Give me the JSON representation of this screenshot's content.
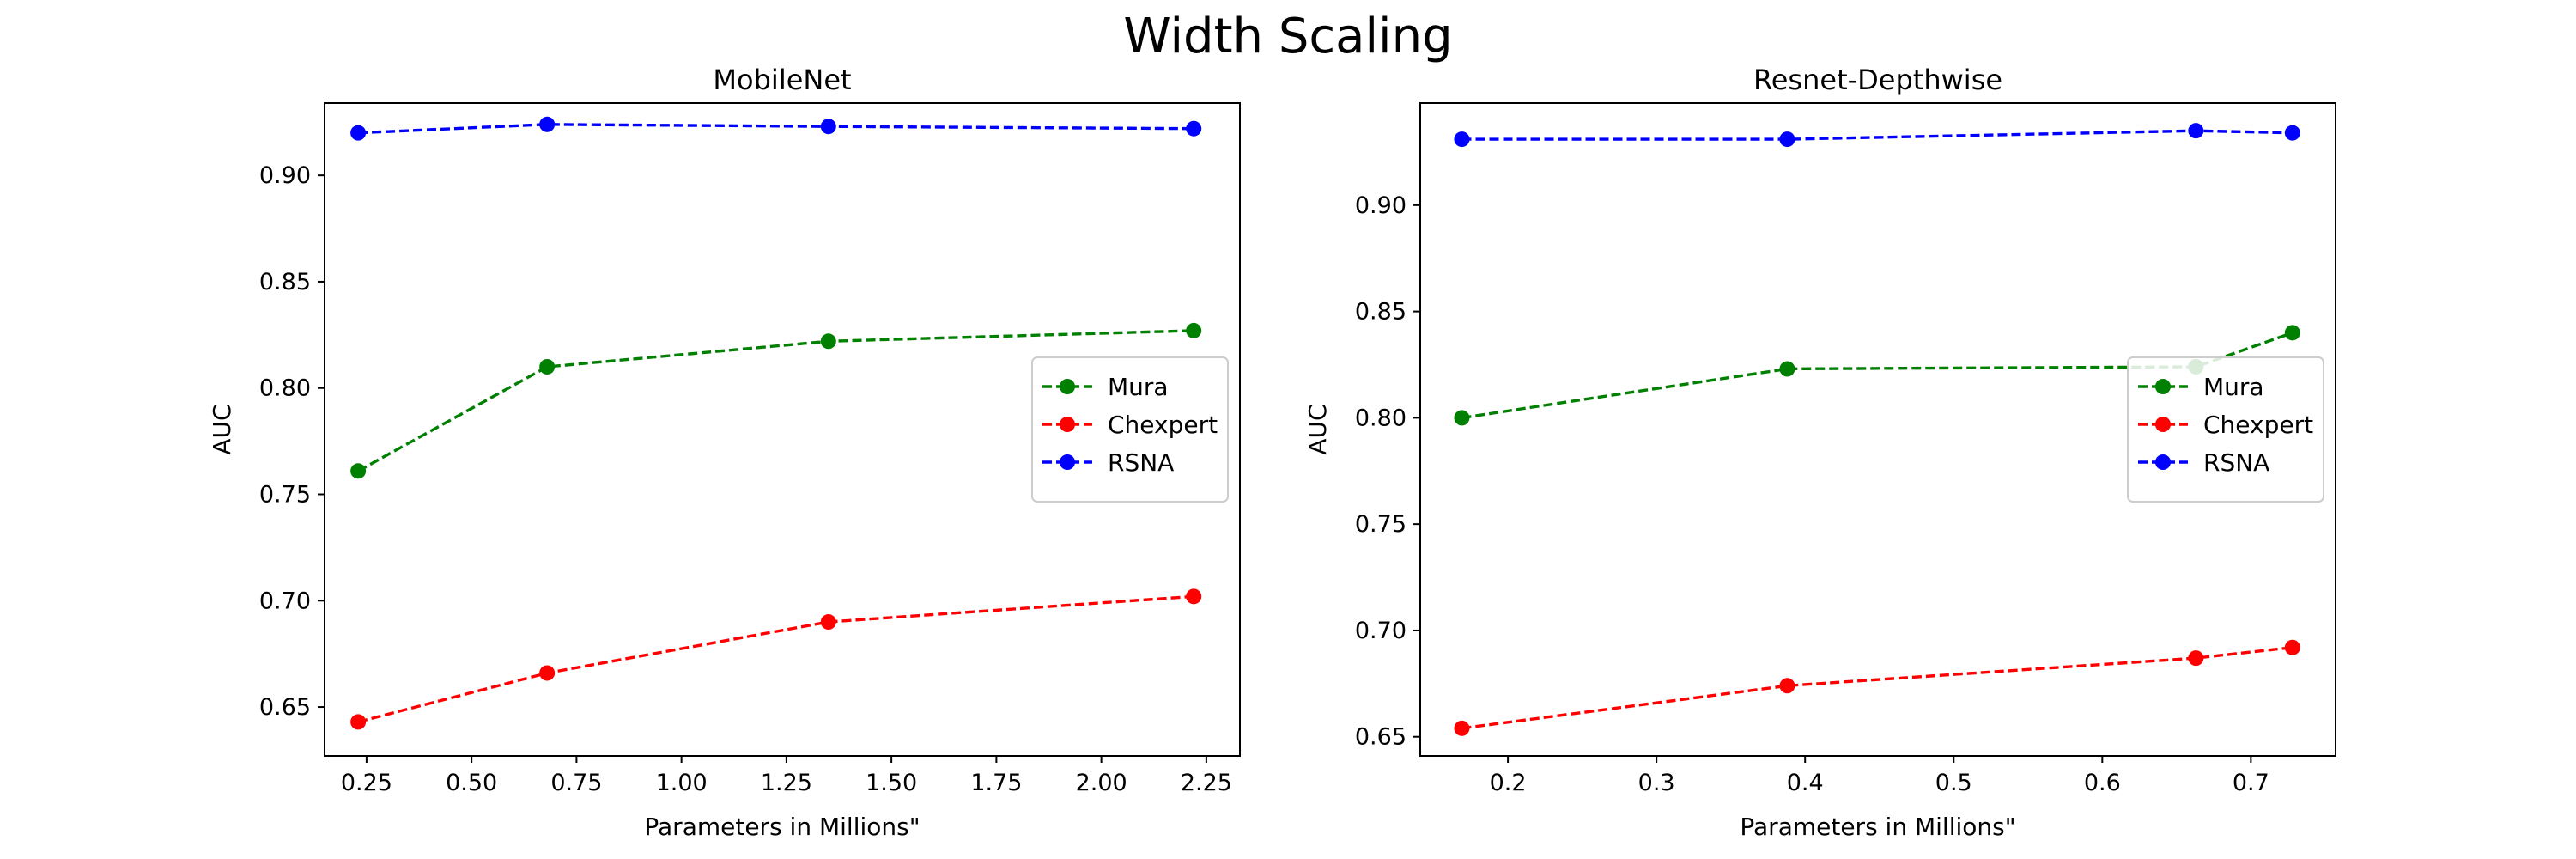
{
  "suptitle": "Width Scaling",
  "chart_data": [
    {
      "type": "line",
      "title": "MobileNet",
      "xlabel": "Parameters in Millions\"",
      "ylabel": "AUC",
      "xlim": [
        0.15,
        2.33
      ],
      "ylim": [
        0.627,
        0.934
      ],
      "xticks": [
        0.25,
        0.5,
        0.75,
        1.0,
        1.25,
        1.5,
        1.75,
        2.0,
        2.25
      ],
      "xtick_labels": [
        "0.25",
        "0.50",
        "0.75",
        "1.00",
        "1.25",
        "1.50",
        "1.75",
        "2.00",
        "2.25"
      ],
      "yticks": [
        0.65,
        0.7,
        0.75,
        0.8,
        0.85,
        0.9
      ],
      "ytick_labels": [
        "0.65",
        "0.70",
        "0.75",
        "0.80",
        "0.85",
        "0.90"
      ],
      "legend_position": "center-right",
      "grid": false,
      "series": [
        {
          "name": "Mura",
          "color": "#008000",
          "x": [
            0.23,
            0.68,
            1.35,
            2.22
          ],
          "y": [
            0.761,
            0.81,
            0.822,
            0.827
          ]
        },
        {
          "name": "Chexpert",
          "color": "#ff0000",
          "x": [
            0.23,
            0.68,
            1.35,
            2.22
          ],
          "y": [
            0.643,
            0.666,
            0.69,
            0.702
          ]
        },
        {
          "name": "RSNA",
          "color": "#0000ff",
          "x": [
            0.23,
            0.68,
            1.35,
            2.22
          ],
          "y": [
            0.92,
            0.924,
            0.923,
            0.922
          ]
        }
      ]
    },
    {
      "type": "line",
      "title": "Resnet-Depthwise",
      "xlabel": "Parameters in Millions\"",
      "ylabel": "AUC",
      "xlim": [
        0.141,
        0.757
      ],
      "ylim": [
        0.641,
        0.948
      ],
      "xticks": [
        0.2,
        0.3,
        0.4,
        0.5,
        0.6,
        0.7
      ],
      "xtick_labels": [
        "0.2",
        "0.3",
        "0.4",
        "0.5",
        "0.6",
        "0.7"
      ],
      "yticks": [
        0.65,
        0.7,
        0.75,
        0.8,
        0.85,
        0.9
      ],
      "ytick_labels": [
        "0.65",
        "0.70",
        "0.75",
        "0.80",
        "0.85",
        "0.90"
      ],
      "legend_position": "center-right",
      "grid": false,
      "series": [
        {
          "name": "Mura",
          "color": "#008000",
          "x": [
            0.169,
            0.388,
            0.663,
            0.728
          ],
          "y": [
            0.8,
            0.823,
            0.824,
            0.84
          ]
        },
        {
          "name": "Chexpert",
          "color": "#ff0000",
          "x": [
            0.169,
            0.388,
            0.663,
            0.728
          ],
          "y": [
            0.654,
            0.674,
            0.687,
            0.692
          ]
        },
        {
          "name": "RSNA",
          "color": "#0000ff",
          "x": [
            0.169,
            0.388,
            0.663,
            0.728
          ],
          "y": [
            0.931,
            0.931,
            0.935,
            0.934
          ]
        }
      ]
    }
  ]
}
